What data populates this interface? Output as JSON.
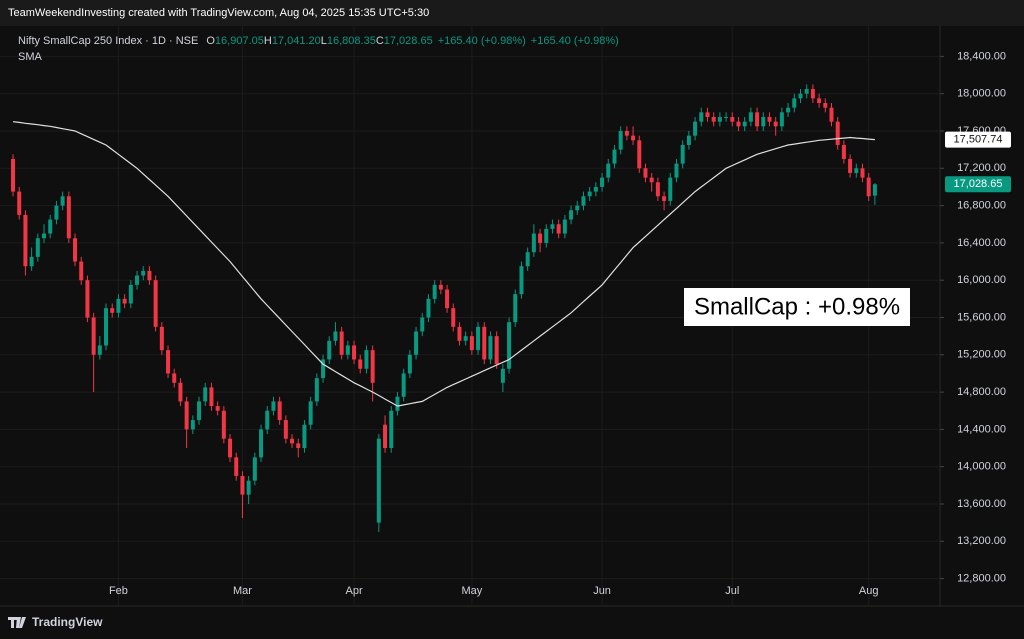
{
  "chart_data": {
    "type": "candlestick",
    "watermark": "TeamWeekendInvesting created with TradingView.com, Aug 04, 2025 15:35 UTC+5:30",
    "title": "Nifty SmallCap 250 Index · 1D · NSE",
    "ohlc": [
      {
        "label": "O",
        "value": "16,907.05"
      },
      {
        "label": "H",
        "value": "17,041.20"
      },
      {
        "label": "L",
        "value": "16,808.35"
      },
      {
        "label": "C",
        "value": "17,028.65"
      }
    ],
    "change": [
      "+165.40 (+0.98%)",
      "+165.40 (+0.98%)"
    ],
    "indicator": "SMA",
    "annotation": "SmallCap : +0.98%",
    "brand": "TradingView",
    "up_color": "#089981",
    "down_color": "#f23645",
    "sma_color": "#e0e0e0",
    "xlim": [
      -2.1,
      149.5
    ],
    "xticks": [
      {
        "value": 17,
        "label": "Feb"
      },
      {
        "value": 37,
        "label": "Mar"
      },
      {
        "value": 55,
        "label": "Apr"
      },
      {
        "value": 74,
        "label": "May"
      },
      {
        "value": 95,
        "label": "Jun"
      },
      {
        "value": 116,
        "label": "Jul"
      },
      {
        "value": 138,
        "label": "Aug"
      }
    ],
    "ylim": [
      12506,
      18726
    ],
    "yticks": [
      {
        "value": 18400,
        "label": "18,400.00"
      },
      {
        "value": 18000,
        "label": "18,000.00"
      },
      {
        "value": 17600,
        "label": "17,600.00"
      },
      {
        "value": 17200,
        "label": "17,200.00"
      },
      {
        "value": 16800,
        "label": "16,800.00"
      },
      {
        "value": 16400,
        "label": "16,400.00"
      },
      {
        "value": 16000,
        "label": "16,000.00"
      },
      {
        "value": 15600,
        "label": "15,600.00"
      },
      {
        "value": 15200,
        "label": "15,200.00"
      },
      {
        "value": 14800,
        "label": "14,800.00"
      },
      {
        "value": 14400,
        "label": "14,400.00"
      },
      {
        "value": 14000,
        "label": "14,000.00"
      },
      {
        "value": 13600,
        "label": "13,600.00"
      },
      {
        "value": 13200,
        "label": "13,200.00"
      },
      {
        "value": 12800,
        "label": "12,800.00"
      }
    ],
    "grid": true,
    "price_labels": [
      {
        "value": 17507.74,
        "label": "17,507.74",
        "kind": "sma"
      },
      {
        "value": 17028.65,
        "label": "17,028.65",
        "kind": "last"
      }
    ],
    "candles": [
      [
        17300,
        17350,
        16900,
        16950
      ],
      [
        16950,
        17000,
        16650,
        16700
      ],
      [
        16700,
        16750,
        16050,
        16150
      ],
      [
        16150,
        16350,
        16100,
        16250
      ],
      [
        16250,
        16500,
        16200,
        16450
      ],
      [
        16450,
        16600,
        16400,
        16500
      ],
      [
        16500,
        16700,
        16450,
        16650
      ],
      [
        16650,
        16850,
        16600,
        16800
      ],
      [
        16800,
        16950,
        16750,
        16900
      ],
      [
        16900,
        16950,
        16400,
        16450
      ],
      [
        16450,
        16500,
        16150,
        16200
      ],
      [
        16200,
        16250,
        15950,
        16000
      ],
      [
        16000,
        16050,
        15550,
        15600
      ],
      [
        15600,
        15650,
        14800,
        15200
      ],
      [
        15200,
        15400,
        15150,
        15300
      ],
      [
        15300,
        15750,
        15250,
        15700
      ],
      [
        15700,
        15750,
        15600,
        15650
      ],
      [
        15650,
        15850,
        15600,
        15800
      ],
      [
        15800,
        15850,
        15700,
        15750
      ],
      [
        15750,
        16000,
        15700,
        15950
      ],
      [
        15950,
        16100,
        15900,
        16050
      ],
      [
        16050,
        16150,
        16000,
        16100
      ],
      [
        16100,
        16150,
        15950,
        16000
      ],
      [
        16000,
        16050,
        15450,
        15500
      ],
      [
        15500,
        15550,
        15200,
        15250
      ],
      [
        15250,
        15300,
        14950,
        15000
      ],
      [
        15000,
        15050,
        14850,
        14900
      ],
      [
        14900,
        14950,
        14650,
        14700
      ],
      [
        14700,
        14750,
        14200,
        14400
      ],
      [
        14400,
        14550,
        14350,
        14500
      ],
      [
        14500,
        14750,
        14450,
        14700
      ],
      [
        14700,
        14900,
        14650,
        14850
      ],
      [
        14850,
        14900,
        14600,
        14650
      ],
      [
        14650,
        14700,
        14550,
        14600
      ],
      [
        14600,
        14650,
        14250,
        14300
      ],
      [
        14300,
        14350,
        14050,
        14100
      ],
      [
        14100,
        14150,
        13850,
        13900
      ],
      [
        13900,
        13950,
        13450,
        13700
      ],
      [
        13700,
        13900,
        13600,
        13850
      ],
      [
        13850,
        14150,
        13800,
        14100
      ],
      [
        14100,
        14450,
        14050,
        14400
      ],
      [
        14400,
        14650,
        14350,
        14600
      ],
      [
        14600,
        14750,
        14550,
        14700
      ],
      [
        14700,
        14750,
        14450,
        14500
      ],
      [
        14500,
        14550,
        14250,
        14300
      ],
      [
        14300,
        14350,
        14200,
        14250
      ],
      [
        14250,
        14300,
        14100,
        14200
      ],
      [
        14200,
        14500,
        14150,
        14450
      ],
      [
        14450,
        14750,
        14400,
        14700
      ],
      [
        14700,
        15000,
        14650,
        14950
      ],
      [
        14950,
        15200,
        14900,
        15150
      ],
      [
        15150,
        15400,
        15100,
        15350
      ],
      [
        15350,
        15550,
        15300,
        15450
      ],
      [
        15450,
        15500,
        15150,
        15200
      ],
      [
        15200,
        15350,
        15150,
        15300
      ],
      [
        15300,
        15350,
        15100,
        15150
      ],
      [
        15150,
        15200,
        15000,
        15050
      ],
      [
        15050,
        15300,
        15000,
        15250
      ],
      [
        15250,
        15300,
        14700,
        14900
      ],
      [
        13400,
        14350,
        13300,
        14300
      ],
      [
        14450,
        14550,
        14150,
        14200
      ],
      [
        14200,
        14650,
        14150,
        14600
      ],
      [
        14600,
        14800,
        14550,
        14750
      ],
      [
        14750,
        15050,
        14700,
        15000
      ],
      [
        15000,
        15250,
        14950,
        15200
      ],
      [
        15200,
        15500,
        15150,
        15450
      ],
      [
        15450,
        15650,
        15400,
        15600
      ],
      [
        15600,
        15850,
        15550,
        15800
      ],
      [
        15800,
        16000,
        15750,
        15950
      ],
      [
        15950,
        16000,
        15850,
        15900
      ],
      [
        15900,
        15950,
        15650,
        15700
      ],
      [
        15700,
        15750,
        15450,
        15500
      ],
      [
        15500,
        15550,
        15300,
        15350
      ],
      [
        15350,
        15450,
        15300,
        15400
      ],
      [
        15400,
        15450,
        15200,
        15250
      ],
      [
        15250,
        15550,
        15200,
        15500
      ],
      [
        15500,
        15550,
        15100,
        15150
      ],
      [
        15150,
        15450,
        15100,
        15400
      ],
      [
        15400,
        15450,
        15050,
        15100
      ],
      [
        14900,
        15100,
        14800,
        15050
      ],
      [
        15050,
        15600,
        15000,
        15550
      ],
      [
        15550,
        15900,
        15500,
        15850
      ],
      [
        15850,
        16200,
        15800,
        16150
      ],
      [
        16150,
        16350,
        16100,
        16300
      ],
      [
        16300,
        16600,
        16250,
        16500
      ],
      [
        16500,
        16550,
        16300,
        16400
      ],
      [
        16400,
        16600,
        16350,
        16550
      ],
      [
        16550,
        16650,
        16500,
        16600
      ],
      [
        16600,
        16650,
        16450,
        16500
      ],
      [
        16500,
        16700,
        16450,
        16650
      ],
      [
        16650,
        16800,
        16600,
        16750
      ],
      [
        16750,
        16850,
        16700,
        16800
      ],
      [
        16800,
        16950,
        16750,
        16900
      ],
      [
        16900,
        17000,
        16850,
        16950
      ],
      [
        16950,
        17050,
        16900,
        17000
      ],
      [
        17000,
        17150,
        16950,
        17100
      ],
      [
        17100,
        17300,
        17050,
        17250
      ],
      [
        17250,
        17450,
        17200,
        17400
      ],
      [
        17400,
        17650,
        17350,
        17600
      ],
      [
        17600,
        17650,
        17500,
        17550
      ],
      [
        17550,
        17650,
        17450,
        17500
      ],
      [
        17500,
        17550,
        17150,
        17200
      ],
      [
        17200,
        17250,
        17050,
        17100
      ],
      [
        17100,
        17150,
        16950,
        17050
      ],
      [
        17050,
        17100,
        16850,
        16900
      ],
      [
        16900,
        16950,
        16750,
        16850
      ],
      [
        16850,
        17150,
        16800,
        17100
      ],
      [
        17100,
        17300,
        17050,
        17250
      ],
      [
        17250,
        17500,
        17200,
        17450
      ],
      [
        17450,
        17600,
        17400,
        17550
      ],
      [
        17550,
        17750,
        17500,
        17700
      ],
      [
        17700,
        17850,
        17650,
        17800
      ],
      [
        17800,
        17850,
        17700,
        17750
      ],
      [
        17750,
        17800,
        17650,
        17700
      ],
      [
        17700,
        17800,
        17650,
        17750
      ],
      [
        17750,
        17800,
        17700,
        17750
      ],
      [
        17750,
        17800,
        17650,
        17700
      ],
      [
        17700,
        17750,
        17600,
        17650
      ],
      [
        17650,
        17750,
        17600,
        17700
      ],
      [
        17700,
        17850,
        17650,
        17800
      ],
      [
        17800,
        17850,
        17600,
        17650
      ],
      [
        17650,
        17800,
        17600,
        17750
      ],
      [
        17750,
        17800,
        17650,
        17700
      ],
      [
        17700,
        17750,
        17550,
        17650
      ],
      [
        17650,
        17850,
        17600,
        17800
      ],
      [
        17800,
        17900,
        17750,
        17850
      ],
      [
        17850,
        18000,
        17800,
        17950
      ],
      [
        17950,
        18050,
        17900,
        18000
      ],
      [
        18000,
        18100,
        17950,
        18050
      ],
      [
        18050,
        18100,
        17900,
        17950
      ],
      [
        17950,
        18000,
        17850,
        17900
      ],
      [
        17900,
        17950,
        17800,
        17850
      ],
      [
        17850,
        17900,
        17650,
        17700
      ],
      [
        17700,
        17750,
        17400,
        17450
      ],
      [
        17450,
        17500,
        17250,
        17300
      ],
      [
        17300,
        17350,
        17100,
        17150
      ],
      [
        17150,
        17250,
        17100,
        17200
      ],
      [
        17200,
        17250,
        17050,
        17100
      ],
      [
        17100,
        17150,
        16850,
        16900
      ],
      [
        16907.05,
        17041.2,
        16808.35,
        17028.65
      ]
    ],
    "sma": [
      17700,
      17692,
      17683,
      17675,
      17667,
      17658,
      17650,
      17638,
      17625,
      17613,
      17600,
      17570,
      17540,
      17510,
      17480,
      17450,
      17400,
      17350,
      17300,
      17250,
      17200,
      17140,
      17080,
      17020,
      16960,
      16900,
      16830,
      16760,
      16690,
      16620,
      16550,
      16480,
      16410,
      16340,
      16270,
      16200,
      16120,
      16040,
      15960,
      15880,
      15800,
      15730,
      15660,
      15590,
      15520,
      15450,
      15380,
      15310,
      15240,
      15170,
      15100,
      15060,
      15020,
      14980,
      14940,
      14900,
      14867,
      14833,
      14800,
      14763,
      14725,
      14688,
      14650,
      14663,
      14675,
      14688,
      14700,
      14738,
      14775,
      14813,
      14850,
      14880,
      14910,
      14940,
      14970,
      15000,
      15030,
      15060,
      15090,
      15120,
      15150,
      15200,
      15250,
      15300,
      15350,
      15400,
      15450,
      15500,
      15550,
      15600,
      15650,
      15710,
      15770,
      15830,
      15890,
      15950,
      16030,
      16110,
      16190,
      16270,
      16350,
      16410,
      16470,
      16530,
      16590,
      16650,
      16710,
      16770,
      16830,
      16890,
      16950,
      17000,
      17050,
      17100,
      17150,
      17200,
      17230,
      17260,
      17290,
      17320,
      17350,
      17370,
      17390,
      17410,
      17430,
      17450,
      17460,
      17470,
      17480,
      17490,
      17500,
      17506,
      17512,
      17518,
      17524,
      17530,
      17524,
      17519,
      17513,
      17507.74
    ]
  }
}
